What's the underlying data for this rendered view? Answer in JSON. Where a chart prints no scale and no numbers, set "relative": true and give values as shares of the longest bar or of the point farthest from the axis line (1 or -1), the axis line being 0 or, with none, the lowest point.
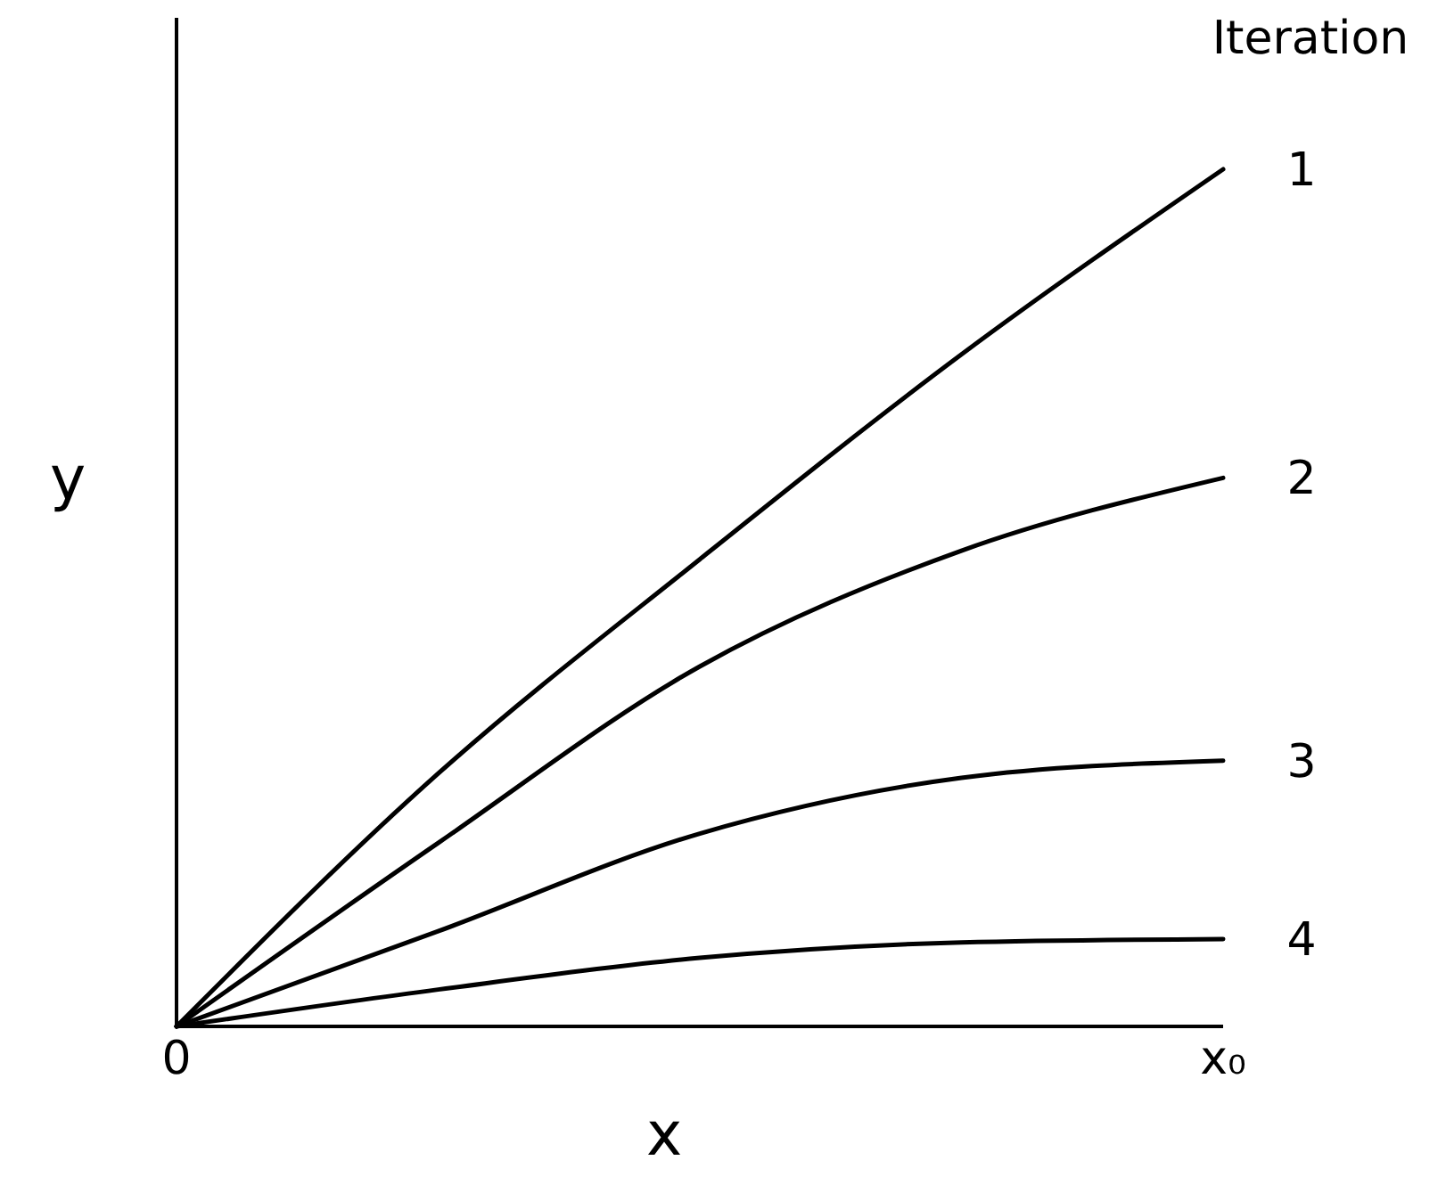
{
  "chart_data": {
    "type": "line",
    "relative": true,
    "xlabel": "x",
    "ylabel": "y",
    "legend_title": "Iteration",
    "categories": [
      "0",
      null,
      null,
      null,
      "x₀"
    ],
    "series": [
      {
        "name": "1",
        "color": "#000000",
        "values": [
          0,
          0.295,
          0.545,
          0.784,
          1
        ]
      },
      {
        "name": "2",
        "color": "#000000",
        "values": [
          0,
          0.214,
          0.42,
          0.555,
          0.64
        ]
      },
      {
        "name": "3",
        "color": "#000000",
        "values": [
          0,
          0.111,
          0.225,
          0.29,
          0.31
        ]
      },
      {
        "name": "4",
        "color": "#000000",
        "values": [
          0,
          0.043,
          0.08,
          0.098,
          0.102
        ]
      }
    ]
  }
}
